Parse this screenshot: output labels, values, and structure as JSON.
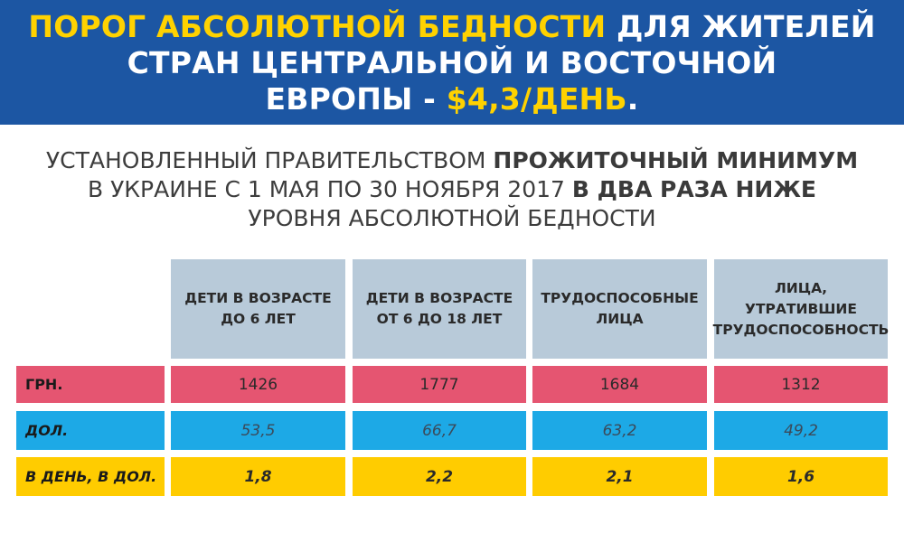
{
  "banner": {
    "line1_hl": "ПОРОГ АБСОЛЮТНОЙ БЕДНОСТИ",
    "line1_rest": " ДЛЯ ЖИТЕЛЕЙ",
    "line2": "СТРАН ЦЕНТРАЛЬНОЙ И ВОСТОЧНОЙ",
    "line3_a": "ЕВРОПЫ - ",
    "line3_hl": "$4,3/ДЕНЬ",
    "line3_b": "."
  },
  "subtitle": {
    "l1_a": "УСТАНОВЛЕННЫЙ ПРАВИТЕЛЬСТВОМ ",
    "l1_b": "ПРОЖИТОЧНЫЙ МИНИМУМ",
    "l2_a": "В УКРАИНЕ С 1 МАЯ ПО 30 НОЯБРЯ 2017 ",
    "l2_b": "В ДВА РАЗА НИЖЕ",
    "l3": "УРОВНЯ АБСОЛЮТНОЙ БЕДНОСТИ"
  },
  "table": {
    "headers": [
      [
        "ДЕТИ В ВОЗРАСТЕ",
        "ДО 6 ЛЕТ"
      ],
      [
        "ДЕТИ В ВОЗРАСТЕ",
        "ОТ 6 ДО 18 ЛЕТ"
      ],
      [
        "ТРУДОСПОСОБНЫЕ",
        "ЛИЦА"
      ],
      [
        "ЛИЦА,",
        "УТРАТИВШИЕ",
        "ТРУДОСПОСОБНОСТЬ"
      ]
    ],
    "rows": [
      {
        "label": "ГРН.",
        "values": [
          "1426",
          "1777",
          "1684",
          "1312"
        ],
        "color": "#e55571"
      },
      {
        "label": "ДОЛ.",
        "values": [
          "53,5",
          "66,7",
          "63,2",
          "49,2"
        ],
        "color": "#1da9e6"
      },
      {
        "label": "В ДЕНЬ, В ДОЛ.",
        "values": [
          "1,8",
          "2,2",
          "2,1",
          "1,6"
        ],
        "color": "#ffcc00"
      }
    ]
  },
  "colors": {
    "banner": "#1c56a3",
    "highlight": "#ffd200",
    "header_cell": "#b8cad9"
  }
}
